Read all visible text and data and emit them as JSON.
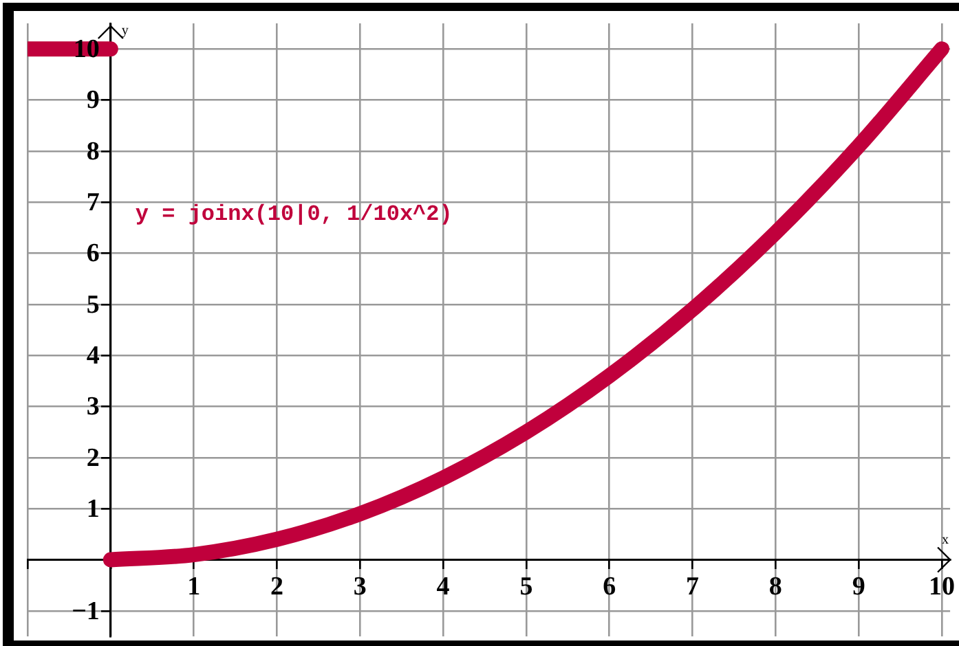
{
  "chart_data": {
    "type": "line",
    "xlabel": "x",
    "ylabel": "y",
    "series": [
      {
        "color": "#c0003c",
        "x": [
          -1,
          0
        ],
        "values": [
          10,
          10
        ]
      },
      {
        "color": "#c0003c",
        "x": [
          0,
          1,
          2,
          3,
          4,
          5,
          6,
          7,
          8,
          9,
          10
        ],
        "values": [
          0,
          0.1,
          0.4,
          0.9,
          1.6,
          2.5,
          3.6,
          4.9,
          6.4,
          8.1,
          10
        ]
      }
    ],
    "xlim": [
      -1,
      10.1
    ],
    "ylim": [
      -1.5,
      10.5
    ],
    "xticks": [
      {
        "value": -1,
        "label": null
      },
      {
        "value": 0,
        "label": null
      },
      1,
      2,
      3,
      4,
      5,
      6,
      7,
      8,
      9,
      10
    ],
    "yticks": [
      {
        "value": -1,
        "label": "−1"
      },
      {
        "value": 0,
        "label": null
      },
      1,
      2,
      3,
      4,
      5,
      6,
      7,
      8,
      9,
      10
    ],
    "grid": true,
    "legend": false,
    "marker": "none",
    "line_style": "solid",
    "annotations": [
      "y = joinx(10|0, 1/10x^2)"
    ]
  }
}
